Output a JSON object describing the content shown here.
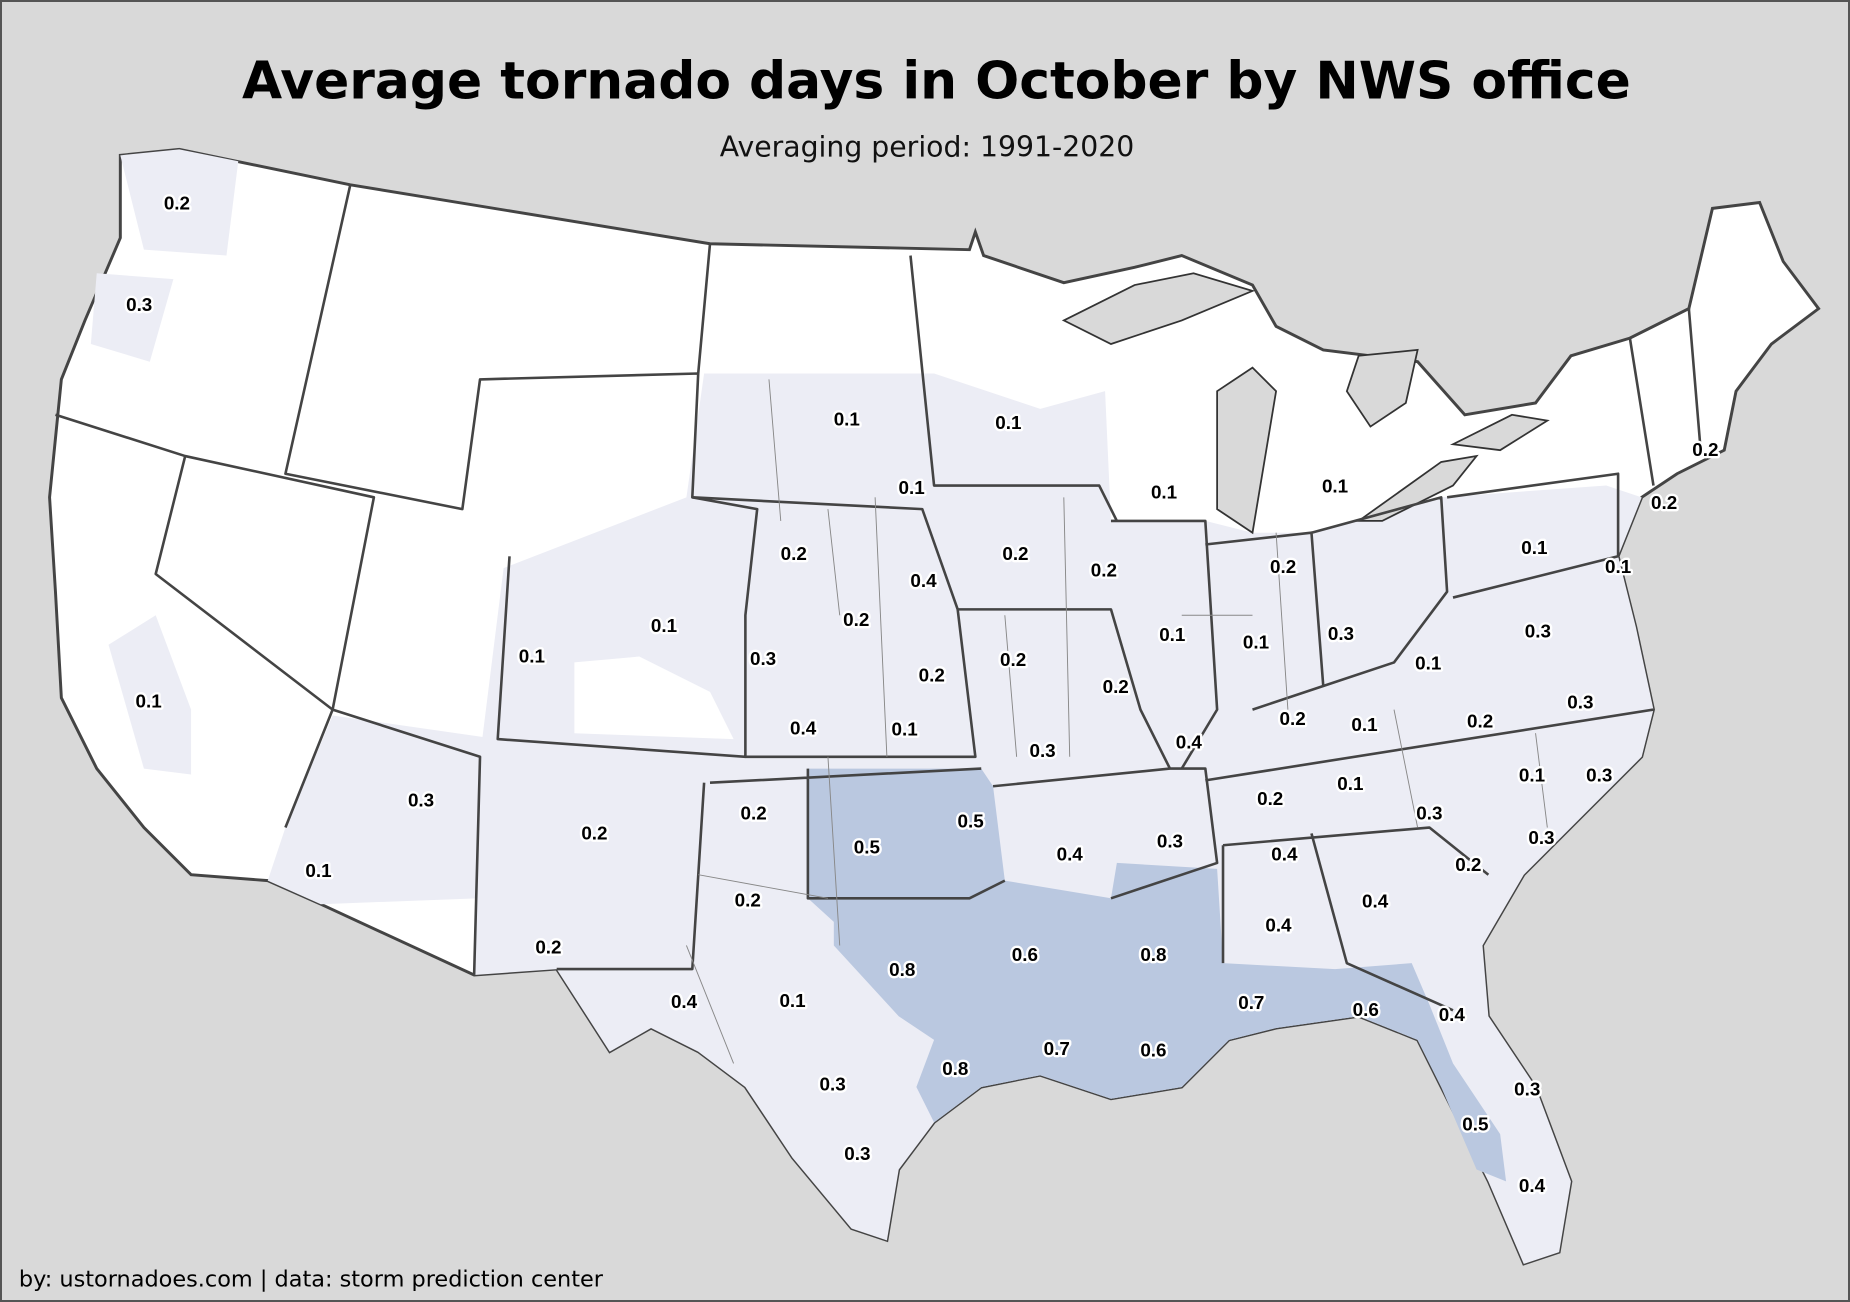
{
  "title": "Average tornado days in October by NWS office",
  "subtitle": "Averaging period: 1991-2020",
  "footer": "by: ustornadoes.com | data: storm prediction center",
  "colors": {
    "background": "#d9d9d9",
    "no_data": "#ffffff",
    "low": "#ecedf5",
    "high": "#bac8e0",
    "water": "#d9d9d9",
    "border": "#444444"
  },
  "offices": [
    {
      "value": "0.2"
    },
    {
      "value": "0.3"
    },
    {
      "value": "0.1"
    },
    {
      "value": "0.1"
    },
    {
      "value": "0.1"
    },
    {
      "value": "0.1"
    },
    {
      "value": "0.1"
    },
    {
      "value": "0.1"
    },
    {
      "value": "0.2"
    },
    {
      "value": "0.2"
    },
    {
      "value": "0.2"
    },
    {
      "value": "0.2"
    },
    {
      "value": "0.2"
    },
    {
      "value": "0.4"
    },
    {
      "value": "0.2"
    },
    {
      "value": "0.2"
    },
    {
      "value": "0.1"
    },
    {
      "value": "0.1"
    },
    {
      "value": "0.1"
    },
    {
      "value": "0.1"
    },
    {
      "value": "0.3"
    },
    {
      "value": "0.2"
    },
    {
      "value": "0.2"
    },
    {
      "value": "0.1"
    },
    {
      "value": "0.1"
    },
    {
      "value": "0.3"
    },
    {
      "value": "0.3"
    },
    {
      "value": "0.1"
    },
    {
      "value": "0.2"
    },
    {
      "value": "0.4"
    },
    {
      "value": "0.1"
    },
    {
      "value": "0.3"
    },
    {
      "value": "0.4"
    },
    {
      "value": "0.2"
    },
    {
      "value": "0.1"
    },
    {
      "value": "0.2"
    },
    {
      "value": "0.3"
    },
    {
      "value": "0.1"
    },
    {
      "value": "0.3"
    },
    {
      "value": "0.1"
    },
    {
      "value": "0.2"
    },
    {
      "value": "0.3"
    },
    {
      "value": "0.2"
    },
    {
      "value": "0.2"
    },
    {
      "value": "0.5"
    },
    {
      "value": "0.5"
    },
    {
      "value": "0.4"
    },
    {
      "value": "0.3"
    },
    {
      "value": "0.4"
    },
    {
      "value": "0.3"
    },
    {
      "value": "0.3"
    },
    {
      "value": "0.2"
    },
    {
      "value": "0.1"
    },
    {
      "value": "0.2"
    },
    {
      "value": "0.4"
    },
    {
      "value": "0.4"
    },
    {
      "value": "0.2"
    },
    {
      "value": "0.8"
    },
    {
      "value": "0.6"
    },
    {
      "value": "0.8"
    },
    {
      "value": "0.4"
    },
    {
      "value": "0.1"
    },
    {
      "value": "0.7"
    },
    {
      "value": "0.6"
    },
    {
      "value": "0.4"
    },
    {
      "value": "0.8"
    },
    {
      "value": "0.7"
    },
    {
      "value": "0.6"
    },
    {
      "value": "0.3"
    },
    {
      "value": "0.3"
    },
    {
      "value": "0.5"
    },
    {
      "value": "0.3"
    },
    {
      "value": "0.4"
    }
  ]
}
